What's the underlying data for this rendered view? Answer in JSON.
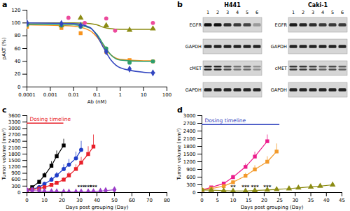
{
  "chart_data": [
    {
      "panel": "a",
      "type": "scatter",
      "x_label": "Ab (nM)",
      "y_label": "pAKT (%)",
      "log": "x",
      "xlim": [
        0.0001,
        100
      ],
      "xticks": [
        0.0001,
        0.001,
        0.01,
        0.1,
        1,
        10,
        100
      ],
      "ylim": [
        0,
        120
      ],
      "yticks": [
        0,
        20,
        40,
        60,
        80,
        100,
        120
      ],
      "series": [
        {
          "color": "#8c8c14",
          "marker": "triangle",
          "x": [
            0.0001,
            0.003,
            0.02,
            0.25,
            2.5,
            25
          ],
          "values": [
            100,
            96,
            108,
            96,
            89,
            91
          ],
          "fit": {
            "x": [
              0.0001,
              0.01,
              0.05,
              0.1,
              0.2,
              0.4,
              1,
              10,
              30
            ],
            "values": [
              100,
              100,
              99,
              97,
              93,
              91,
              90,
              90,
              90
            ]
          }
        },
        {
          "color": "#ec4a9c",
          "marker": "circle",
          "x": [
            0.0001,
            0.006,
            0.03,
            0.25,
            0.6,
            25
          ],
          "values": [
            96,
            108,
            100,
            107,
            88,
            100
          ]
        },
        {
          "color": "#f7931e",
          "marker": "square",
          "x": [
            0.0001,
            0.003,
            0.02,
            0.25,
            2.5,
            25
          ],
          "values": [
            94,
            92,
            84,
            55,
            42,
            40
          ],
          "fit": {
            "x": [
              0.0001,
              0.01,
              0.05,
              0.1,
              0.2,
              0.4,
              1,
              10,
              30
            ],
            "values": [
              97,
              95,
              88,
              78,
              63,
              50,
              43,
              41,
              41
            ]
          }
        },
        {
          "color": "#2e9e6b",
          "marker": "circle",
          "x": [
            0.0001,
            0.003,
            0.02,
            0.25,
            2.5,
            25
          ],
          "values": [
            97,
            96,
            94,
            60,
            38,
            40
          ],
          "fit": {
            "x": [
              0.0001,
              0.01,
              0.05,
              0.1,
              0.2,
              0.4,
              1,
              10,
              30
            ],
            "values": [
              98,
              97,
              92,
              82,
              65,
              50,
              42,
              40,
              40
            ]
          }
        },
        {
          "color": "#3346c0",
          "marker": "diamond",
          "x": [
            0.0001,
            0.003,
            0.02,
            0.25,
            2.5,
            25
          ],
          "values": [
            100,
            99,
            96,
            55,
            28,
            22
          ],
          "fit": {
            "x": [
              0.0001,
              0.01,
              0.05,
              0.1,
              0.2,
              0.4,
              1,
              10,
              30
            ],
            "values": [
              100,
              99,
              93,
              80,
              60,
              42,
              30,
              23,
              22
            ]
          }
        }
      ]
    },
    {
      "panel": "c",
      "type": "line",
      "x_label": "Days post grouping (Day)",
      "y_label": "Tumor volume (mm³)",
      "xlim": [
        0,
        80
      ],
      "xticks": [
        0,
        10,
        20,
        30,
        40,
        50,
        60,
        70,
        80
      ],
      "ylim": [
        0,
        3600
      ],
      "yticks": [
        0,
        300,
        600,
        900,
        1200,
        1500,
        1800,
        2100,
        2400,
        2700,
        3000,
        3300,
        3600
      ],
      "dosing": {
        "text": "Dosing timeline",
        "color": "#e8202a",
        "start": 0,
        "end": 21,
        "y": 3250
      },
      "annotations": [
        {
          "x": 31,
          "y": 250,
          "text": "***"
        },
        {
          "x": 35,
          "y": 250,
          "text": "***"
        },
        {
          "x": 38,
          "y": 250,
          "text": "***"
        }
      ],
      "series": [
        {
          "color": "#000000",
          "marker": "square",
          "x": [
            0,
            3,
            7,
            10,
            14,
            17,
            21
          ],
          "values": [
            100,
            250,
            500,
            800,
            1250,
            1700,
            2200
          ],
          "errors": [
            20,
            40,
            80,
            120,
            200,
            250,
            300
          ]
        },
        {
          "color": "#1f3dc8",
          "marker": "circle",
          "x": [
            0,
            3,
            7,
            10,
            14,
            17,
            21,
            24,
            28,
            31
          ],
          "values": [
            100,
            150,
            250,
            400,
            600,
            800,
            1100,
            1300,
            1600,
            2000
          ],
          "errors": [
            20,
            30,
            50,
            80,
            120,
            150,
            200,
            250,
            300,
            400
          ]
        },
        {
          "color": "#e8202a",
          "marker": "square",
          "x": [
            0,
            3,
            7,
            10,
            14,
            17,
            21,
            24,
            28,
            31,
            35,
            38
          ],
          "values": [
            100,
            130,
            180,
            250,
            350,
            450,
            600,
            800,
            1100,
            1400,
            1800,
            2150
          ],
          "errors": [
            20,
            25,
            30,
            40,
            60,
            80,
            100,
            150,
            200,
            250,
            350,
            550
          ]
        },
        {
          "color": "#9b3dc8",
          "marker": "diamond",
          "x": [
            0,
            3,
            7,
            10,
            14,
            17,
            21,
            24,
            28,
            31,
            35,
            38,
            42,
            45,
            50
          ],
          "values": [
            100,
            90,
            70,
            50,
            40,
            30,
            20,
            20,
            20,
            25,
            30,
            40,
            60,
            90,
            130
          ],
          "errors": [
            15,
            15,
            10,
            10,
            10,
            10,
            5,
            5,
            5,
            5,
            10,
            10,
            15,
            20,
            30
          ]
        }
      ]
    },
    {
      "panel": "d",
      "type": "line",
      "x_label": "Days post grouping (Day)",
      "y_label": "Tumor volume (mm³)",
      "xlim": [
        0,
        45
      ],
      "xticks": [
        0,
        5,
        10,
        15,
        20,
        25,
        30,
        35,
        40,
        45
      ],
      "ylim": [
        0,
        3000
      ],
      "yticks": [
        0,
        300,
        600,
        900,
        1200,
        1500,
        1800,
        2100,
        2400,
        2700,
        3000
      ],
      "dosing": {
        "text": "Dosing timeline",
        "color": "#3346c0",
        "start": 0,
        "end": 25,
        "y": 2650
      },
      "annotations": [
        {
          "x": 10,
          "y": 200,
          "text": "**"
        },
        {
          "x": 14,
          "y": 200,
          "text": "***"
        },
        {
          "x": 17,
          "y": 200,
          "text": "***"
        },
        {
          "x": 21,
          "y": 200,
          "text": "***"
        }
      ],
      "series": [
        {
          "color": "#ec1c8c",
          "marker": "square",
          "x": [
            0,
            3,
            7,
            10,
            14,
            17,
            21
          ],
          "values": [
            100,
            200,
            350,
            600,
            1000,
            1400,
            2000
          ],
          "errors": [
            20,
            30,
            50,
            80,
            120,
            180,
            250
          ]
        },
        {
          "color": "#f39a2b",
          "marker": "square",
          "x": [
            0,
            3,
            7,
            10,
            14,
            17,
            21,
            24
          ],
          "values": [
            100,
            150,
            250,
            400,
            650,
            900,
            1200,
            1600
          ],
          "errors": [
            20,
            30,
            40,
            60,
            100,
            150,
            200,
            300
          ]
        },
        {
          "color": "#8c8c14",
          "marker": "triangle",
          "x": [
            0,
            3,
            7,
            10,
            14,
            17,
            21,
            24,
            28,
            31,
            35,
            38,
            42
          ],
          "values": [
            100,
            90,
            70,
            60,
            60,
            80,
            100,
            120,
            150,
            180,
            220,
            250,
            300
          ],
          "errors": [
            15,
            15,
            10,
            10,
            10,
            15,
            20,
            25,
            30,
            40,
            50,
            60,
            80
          ]
        }
      ]
    }
  ],
  "blot": {
    "panel": "b",
    "blots": [
      {
        "cell_line": "H441",
        "lanes": [
          1,
          2,
          3,
          4,
          5,
          6
        ],
        "rows": [
          {
            "label": "EGFR",
            "bands": 1,
            "intensity": [
              1,
              1,
              0.85,
              0.8,
              0.75,
              0.3
            ]
          },
          {
            "label": "GAPDH",
            "bands": 1,
            "intensity": [
              0.9,
              0.9,
              0.9,
              0.9,
              0.9,
              0.9
            ]
          },
          {
            "label": "cMET",
            "bands": 2,
            "intensity": [
              0.9,
              0.9,
              0.7,
              0.5,
              0.55,
              0.35
            ]
          },
          {
            "label": "GAPDH",
            "bands": 1,
            "intensity": [
              0.9,
              0.9,
              0.9,
              0.9,
              0.9,
              0.9
            ]
          }
        ]
      },
      {
        "cell_line": "Caki-1",
        "lanes": [
          1,
          2,
          3,
          4,
          5,
          6
        ],
        "rows": [
          {
            "label": "EGFR",
            "bands": 1,
            "intensity": [
              0.95,
              0.9,
              0.85,
              0.8,
              0.8,
              0.8
            ]
          },
          {
            "label": "GAPDH",
            "bands": 1,
            "intensity": [
              0.9,
              0.9,
              0.9,
              0.9,
              0.9,
              0.9
            ]
          },
          {
            "label": "cMET",
            "bands": 2,
            "intensity": [
              0.8,
              0.8,
              0.75,
              0.6,
              0.7,
              0.6
            ]
          },
          {
            "label": "GAPDH",
            "bands": 1,
            "intensity": [
              0.9,
              0.9,
              0.9,
              0.9,
              0.9,
              0.9
            ]
          }
        ]
      }
    ]
  }
}
